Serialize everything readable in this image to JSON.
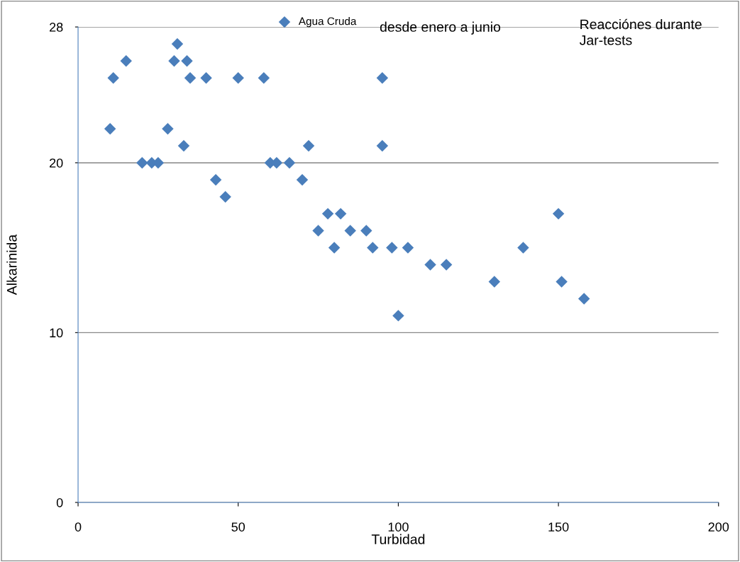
{
  "chart_data": {
    "type": "scatter",
    "xlabel": "Turbidad",
    "ylabel": "Alkarinida",
    "annotations": [
      "desde enero a junio",
      "Reacciónes durante\nJar-tests"
    ],
    "series": [
      {
        "name": "Agua Cruda",
        "color": "#4a7ebb",
        "x": [
          10,
          11,
          15,
          20,
          23,
          25,
          28,
          30,
          31,
          34,
          33,
          35,
          40,
          43,
          46,
          50,
          58,
          60,
          62,
          66,
          70,
          72,
          75,
          78,
          80,
          82,
          85,
          90,
          92,
          95,
          95,
          98,
          100,
          103,
          110,
          115,
          130,
          139,
          150,
          151,
          158
        ],
        "values": [
          22,
          25,
          26,
          20,
          20,
          20,
          22,
          26,
          27,
          26,
          21,
          25,
          25,
          19,
          18,
          25,
          25,
          20,
          20,
          20,
          19,
          21,
          16,
          17,
          15,
          17,
          16,
          16,
          15,
          25,
          21,
          15,
          11,
          15,
          14,
          14,
          13,
          15,
          17,
          13,
          12
        ]
      }
    ],
    "xlim": [
      0,
      200
    ],
    "xticks": [
      0,
      50,
      100,
      150,
      200
    ],
    "ylim": [
      0,
      28
    ],
    "yticks": [
      0,
      10,
      20,
      28
    ],
    "grid": "y",
    "legend": "top",
    "marker": "diamond"
  }
}
